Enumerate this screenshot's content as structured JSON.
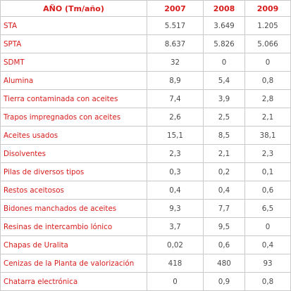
{
  "table": {
    "header": {
      "label": "AÑO (Tm/año)",
      "years": [
        "2007",
        "2008",
        "2009"
      ]
    },
    "rows": [
      {
        "label": "STA",
        "values": [
          "5.517",
          "3.649",
          "1.205"
        ]
      },
      {
        "label": "SPTA",
        "values": [
          "8.637",
          "5.826",
          "5.066"
        ]
      },
      {
        "label": "SDMT",
        "values": [
          "32",
          "0",
          "0"
        ]
      },
      {
        "label": "Alumina",
        "values": [
          "8,9",
          "5,4",
          "0,8"
        ]
      },
      {
        "label": "Tierra contaminada con aceites",
        "values": [
          "7,4",
          "3,9",
          "2,8"
        ]
      },
      {
        "label": "Trapos impregnados con aceites",
        "values": [
          "2,6",
          "2,5",
          "2,1"
        ]
      },
      {
        "label": "Aceites usados",
        "values": [
          "15,1",
          "8,5",
          "38,1"
        ]
      },
      {
        "label": "Disolventes",
        "values": [
          "2,3",
          "2,1",
          "2,3"
        ]
      },
      {
        "label": "Pilas de diversos tipos",
        "values": [
          "0,3",
          "0,2",
          "0,1"
        ]
      },
      {
        "label": "Restos aceitosos",
        "values": [
          "0,4",
          "0,4",
          "0,6"
        ]
      },
      {
        "label": "Bidones manchados de aceites",
        "values": [
          "9,3",
          "7,7",
          "6,5"
        ]
      },
      {
        "label": "Resinas de intercambio lónico",
        "values": [
          "3,7",
          "9,5",
          "0"
        ]
      },
      {
        "label": "Chapas de Uralita",
        "values": [
          "0,02",
          "0,6",
          "0,4"
        ]
      },
      {
        "label": "Cenizas de la Planta de valorización",
        "values": [
          "418",
          "480",
          "93"
        ]
      },
      {
        "label": "Chatarra electrónica",
        "values": [
          "0",
          "0,9",
          "0,8"
        ]
      }
    ]
  },
  "colors": {
    "label_text": "#d81c1c",
    "value_text": "#4a4a4a",
    "border": "#c9c9c9"
  }
}
